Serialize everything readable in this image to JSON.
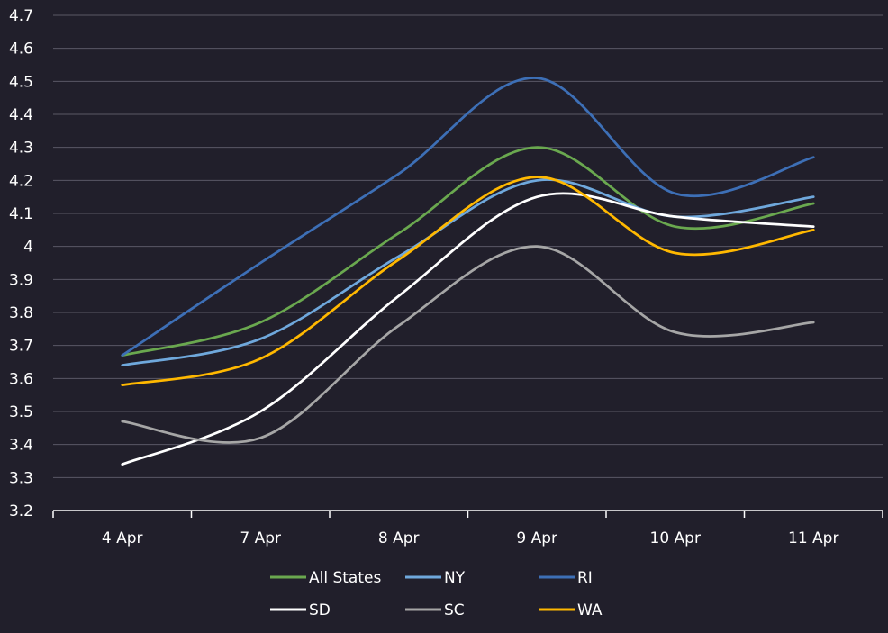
{
  "chart_data": {
    "type": "line",
    "categories": [
      "4 Apr",
      "7 Apr",
      "8 Apr",
      "9 Apr",
      "10 Apr",
      "11 Apr"
    ],
    "series": [
      {
        "name": "All States",
        "color": "#6aa84f",
        "values": [
          3.67,
          3.77,
          4.04,
          4.3,
          4.06,
          4.13
        ]
      },
      {
        "name": "NY",
        "color": "#6fa8dc",
        "values": [
          3.64,
          3.72,
          3.97,
          4.2,
          4.09,
          4.15
        ]
      },
      {
        "name": "RI",
        "color": "#3d6fb6",
        "values": [
          3.67,
          3.95,
          4.22,
          4.51,
          4.16,
          4.27
        ]
      },
      {
        "name": "SD",
        "color": "#ffffff",
        "values": [
          3.34,
          3.5,
          3.85,
          4.15,
          4.09,
          4.06
        ]
      },
      {
        "name": "SC",
        "color": "#a6a6a6",
        "values": [
          3.47,
          3.42,
          3.76,
          4.0,
          3.74,
          3.77
        ]
      },
      {
        "name": "WA",
        "color": "#ffb800",
        "values": [
          3.58,
          3.66,
          3.96,
          4.21,
          3.98,
          4.05
        ]
      }
    ],
    "yticks": [
      "3.2",
      "3.3",
      "3.4",
      "3.5",
      "3.6",
      "3.7",
      "3.8",
      "3.9",
      "4",
      "4.1",
      "4.2",
      "4.3",
      "4.4",
      "4.5",
      "4.6",
      "4.7"
    ],
    "ylim": [
      3.2,
      4.7
    ],
    "grid": true,
    "legend_position": "bottom",
    "background": "#211f2b",
    "grid_color": "#5a5866"
  }
}
